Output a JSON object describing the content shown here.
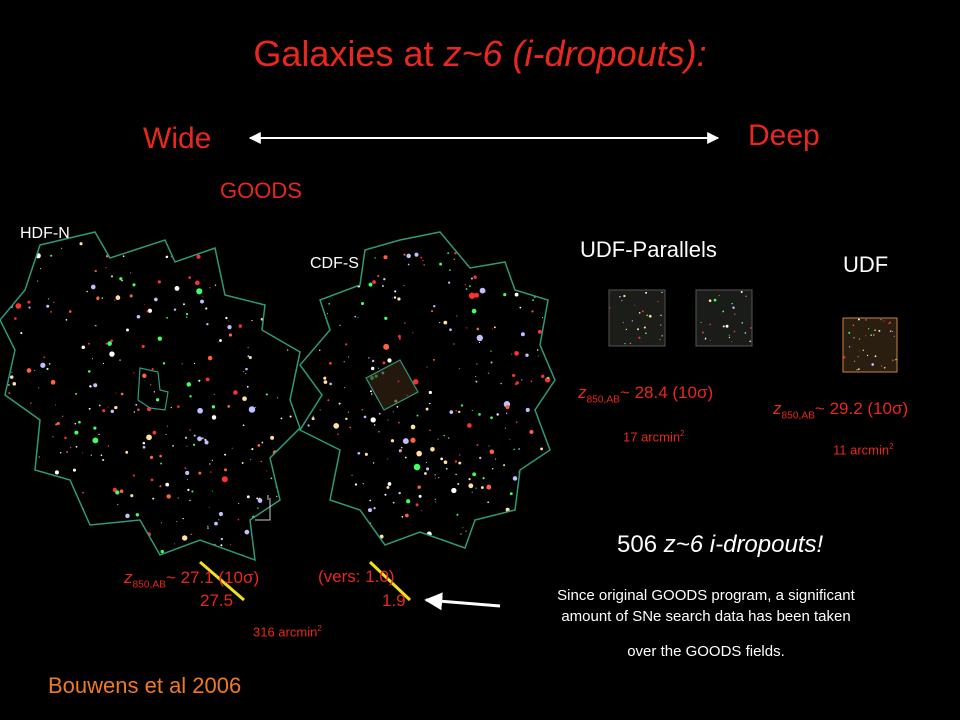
{
  "title": {
    "lead": "Galaxies at",
    "redshift": "z~6",
    "tail": "(i-dropouts):"
  },
  "axis": {
    "left": "Wide",
    "right": "Deep"
  },
  "goods": {
    "label": "GOODS",
    "fields": [
      "HDF-N",
      "CDF-S"
    ],
    "depth": {
      "z": "z",
      "sub": "850,AB",
      "value": "~ 27.1 (10σ)",
      "version": "(vers: 1.0)",
      "new_depth": "27.5",
      "new_version": "1.9"
    },
    "area": {
      "text": "316 arcmin",
      "sup": "2"
    }
  },
  "udf_parallels": {
    "label": "UDF-Parallels",
    "depth": {
      "z": "z",
      "sub": "850,AB",
      "value": "~ 28.4 (10σ)"
    },
    "area": {
      "text": "17 arcmin",
      "sup": "2"
    }
  },
  "udf": {
    "label": "UDF",
    "depth": {
      "z": "z",
      "sub": "850,AB",
      "value": "~ 29.2 (10σ)"
    },
    "area": {
      "text": "11 arcmin",
      "sup": "2"
    }
  },
  "count": {
    "number": "506",
    "redshift": "z~6",
    "label": "i-dropouts!"
  },
  "note": [
    "Since original GOODS program, a significant",
    "amount of SNe search data has been taken",
    "over the GOODS fields."
  ],
  "credit": "Bouwens et al 2006"
}
